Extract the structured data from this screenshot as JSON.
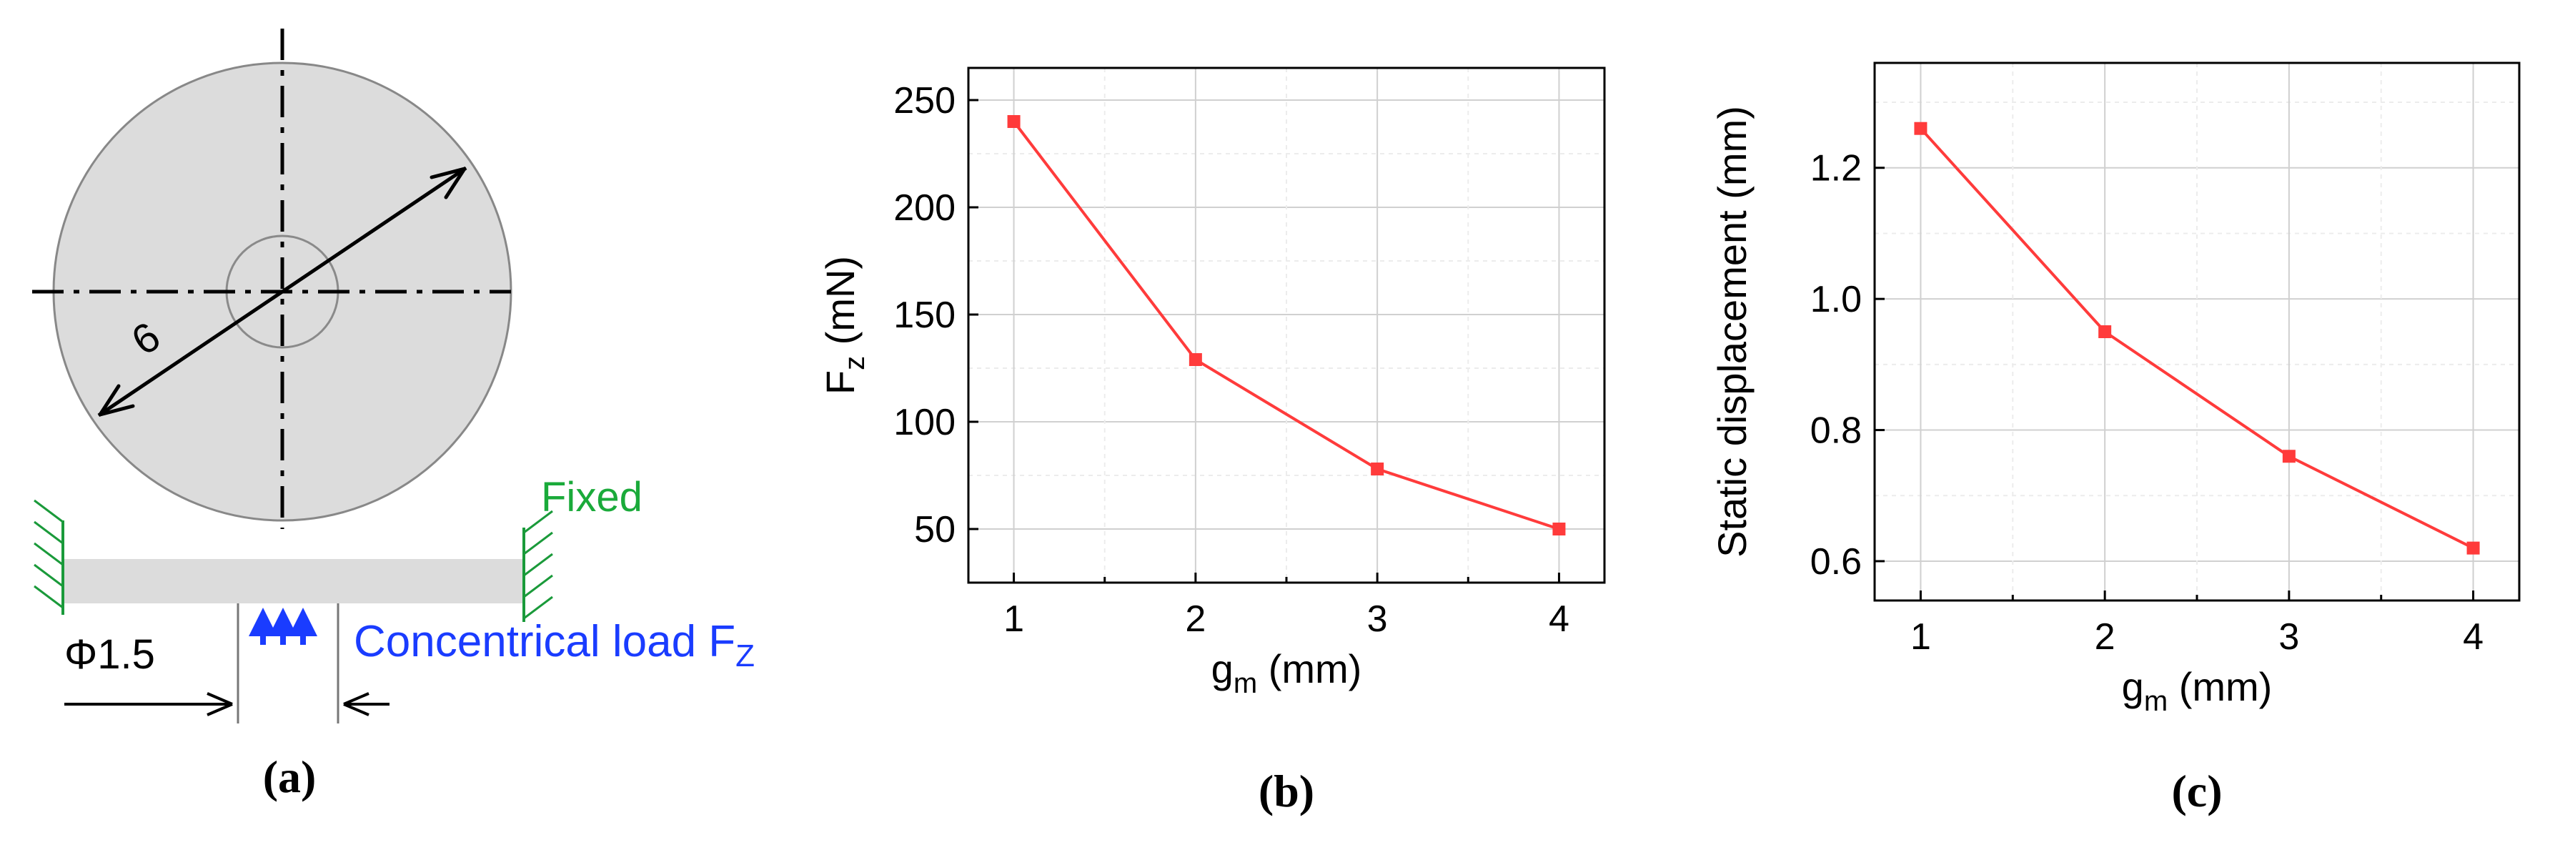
{
  "panel_a": {
    "caption": "(a)",
    "diameter_label": "6",
    "fixed_label": "Fixed",
    "phi_label": "Φ1.5",
    "load_label": "Concentrical load F",
    "load_label_sub": "Z"
  },
  "chart_data": [
    {
      "type": "line",
      "caption": "(b)",
      "xlabel": "g",
      "xlabel_sub": "m",
      "xlabel_unit": " (mm)",
      "ylabel": "F",
      "ylabel_sub": "z",
      "ylabel_unit": "  (mN)",
      "x": [
        1,
        2,
        3,
        4
      ],
      "series": [
        {
          "values": [
            240,
            129,
            78,
            50
          ],
          "color": "#ff3b3b"
        }
      ],
      "xlim": [
        0.75,
        4.25
      ],
      "ylim": [
        25,
        265
      ],
      "xticks": [
        1,
        2,
        3,
        4
      ],
      "yticks": [
        50,
        100,
        150,
        200,
        250
      ],
      "ytick_labels": [
        "50",
        "100",
        "150",
        "200",
        "250"
      ],
      "grid": true
    },
    {
      "type": "line",
      "caption": "(c)",
      "xlabel": "g",
      "xlabel_sub": "m",
      "xlabel_unit": " (mm)",
      "ylabel": "Static displacement (mm)",
      "x": [
        1,
        2,
        3,
        4
      ],
      "series": [
        {
          "values": [
            1.26,
            0.95,
            0.76,
            0.62
          ],
          "color": "#ff3b3b"
        }
      ],
      "xlim": [
        0.75,
        4.25
      ],
      "ylim": [
        0.54,
        1.36
      ],
      "xticks": [
        1,
        2,
        3,
        4
      ],
      "yticks": [
        0.6,
        0.8,
        1.0,
        1.2
      ],
      "ytick_labels": [
        "0.6",
        "0.8",
        "1.0",
        "1.2"
      ],
      "grid": true
    }
  ]
}
